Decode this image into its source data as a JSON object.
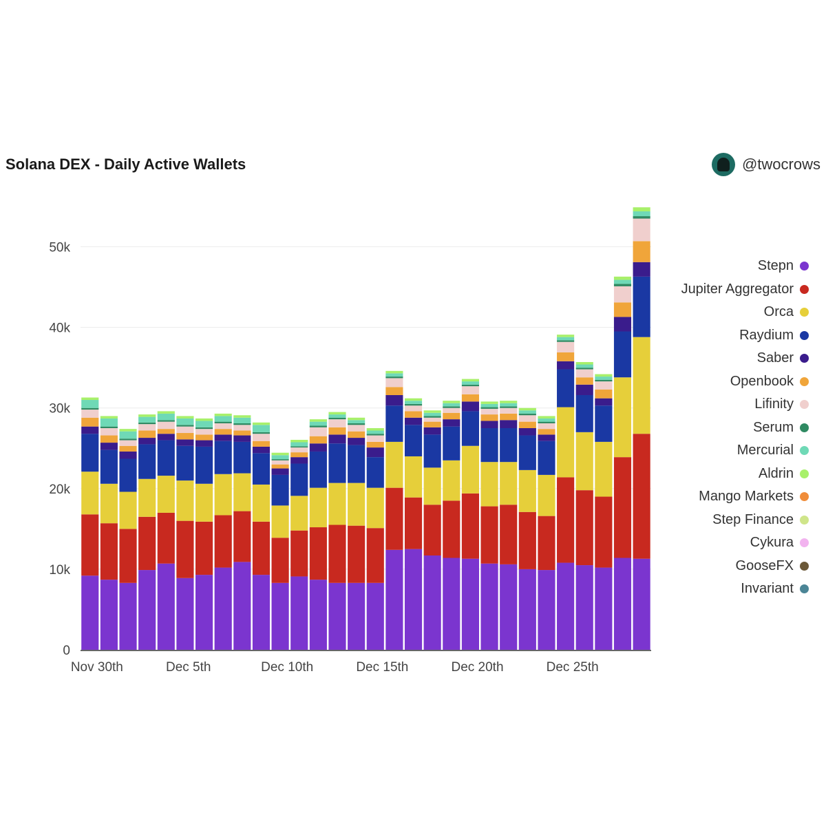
{
  "header": {
    "title": "Solana DEX - Daily Active Wallets",
    "handle": "@twocrows"
  },
  "chart_data": {
    "type": "bar",
    "stacked": true,
    "title": "Solana DEX - Daily Active Wallets",
    "xlabel": "",
    "ylabel": "",
    "ylim": [
      0,
      55000
    ],
    "yticks": [
      {
        "value": 0,
        "label": "0"
      },
      {
        "value": 10000,
        "label": "10k"
      },
      {
        "value": 20000,
        "label": "20k"
      },
      {
        "value": 30000,
        "label": "30k"
      },
      {
        "value": 40000,
        "label": "40k"
      },
      {
        "value": 50000,
        "label": "50k"
      }
    ],
    "xticks": [
      {
        "index": 0,
        "label": "Nov 30th"
      },
      {
        "index": 5,
        "label": "Dec 5th"
      },
      {
        "index": 10,
        "label": "Dec 10th"
      },
      {
        "index": 15,
        "label": "Dec 15th"
      },
      {
        "index": 20,
        "label": "Dec 20th"
      },
      {
        "index": 25,
        "label": "Dec 25th"
      }
    ],
    "grid": true,
    "legend_position": "right",
    "categories": [
      "2022-11-30",
      "2022-12-01",
      "2022-12-02",
      "2022-12-03",
      "2022-12-04",
      "2022-12-05",
      "2022-12-06",
      "2022-12-07",
      "2022-12-08",
      "2022-12-09",
      "2022-12-10",
      "2022-12-11",
      "2022-12-12",
      "2022-12-13",
      "2022-12-14",
      "2022-12-15",
      "2022-12-16",
      "2022-12-17",
      "2022-12-18",
      "2022-12-19",
      "2022-12-20",
      "2022-12-21",
      "2022-12-22",
      "2022-12-23",
      "2022-12-24",
      "2022-12-25",
      "2022-12-26",
      "2022-12-27",
      "2022-12-28",
      "2022-12-29"
    ],
    "series": [
      {
        "name": "Stepn",
        "color": "#7b35cf",
        "values": [
          9200,
          8700,
          8300,
          9900,
          10700,
          8900,
          9300,
          10200,
          10900,
          9300,
          8300,
          9100,
          8700,
          8300,
          8300,
          8300,
          12400,
          12500,
          11700,
          11400,
          11300,
          10700,
          10600,
          10000,
          9900,
          10800,
          10500,
          10200,
          11400,
          11300
        ]
      },
      {
        "name": "Jupiter Aggregator",
        "color": "#c8291f",
        "values": [
          7600,
          7000,
          6700,
          6600,
          6300,
          7100,
          6600,
          6500,
          6300,
          6600,
          5600,
          5700,
          6500,
          7200,
          7100,
          6800,
          7700,
          6400,
          6300,
          7100,
          8100,
          7100,
          7400,
          7100,
          6700,
          10600,
          9300,
          8800,
          12500,
          15500
        ]
      },
      {
        "name": "Orca",
        "color": "#e6cf3a",
        "values": [
          5300,
          4900,
          4600,
          4700,
          4600,
          5000,
          4700,
          5100,
          4700,
          4600,
          4000,
          4300,
          4900,
          5200,
          5300,
          5000,
          5700,
          5100,
          4600,
          5000,
          5900,
          5500,
          5300,
          5200,
          5100,
          8700,
          7200,
          6800,
          9900,
          12000
        ]
      },
      {
        "name": "Raydium",
        "color": "#1a38a3",
        "values": [
          4700,
          4200,
          4100,
          4300,
          4400,
          4300,
          4600,
          4100,
          3900,
          3900,
          3800,
          4000,
          4500,
          4900,
          4700,
          3800,
          4500,
          3900,
          4100,
          4200,
          4300,
          4200,
          4200,
          4300,
          4200,
          4700,
          4600,
          4500,
          5700,
          7500
        ]
      },
      {
        "name": "Saber",
        "color": "#3a1c8c",
        "values": [
          900,
          900,
          900,
          800,
          800,
          800,
          800,
          800,
          800,
          800,
          800,
          800,
          1000,
          1100,
          900,
          1200,
          1300,
          900,
          900,
          900,
          1200,
          900,
          1000,
          900,
          800,
          1000,
          1300,
          900,
          1800,
          1800
        ]
      },
      {
        "name": "Openbook",
        "color": "#f0a53a",
        "values": [
          1100,
          900,
          700,
          900,
          600,
          800,
          700,
          700,
          600,
          700,
          500,
          600,
          900,
          900,
          800,
          700,
          1000,
          800,
          700,
          800,
          900,
          800,
          800,
          800,
          700,
          1100,
          900,
          1100,
          1800,
          2600
        ]
      },
      {
        "name": "Lifinity",
        "color": "#f0cfcd",
        "values": [
          1000,
          900,
          700,
          800,
          900,
          800,
          700,
          700,
          700,
          900,
          500,
          600,
          1100,
          1000,
          800,
          800,
          1100,
          700,
          500,
          600,
          1000,
          700,
          700,
          800,
          700,
          1300,
          1000,
          1000,
          2000,
          2800
        ]
      },
      {
        "name": "Serum",
        "color": "#2f8a62",
        "values": [
          200,
          200,
          200,
          200,
          200,
          200,
          200,
          200,
          200,
          200,
          150,
          150,
          200,
          200,
          200,
          200,
          200,
          200,
          200,
          200,
          200,
          200,
          200,
          200,
          200,
          200,
          200,
          200,
          300,
          300
        ]
      },
      {
        "name": "Mercurial",
        "color": "#6fd9b6",
        "values": [
          1000,
          1000,
          900,
          700,
          800,
          800,
          800,
          700,
          700,
          900,
          500,
          500,
          500,
          400,
          400,
          400,
          400,
          400,
          400,
          400,
          400,
          400,
          400,
          400,
          400,
          400,
          400,
          400,
          500,
          600
        ]
      },
      {
        "name": "Aldrin",
        "color": "#a8f06a",
        "values": [
          300,
          300,
          300,
          300,
          300,
          300,
          300,
          300,
          300,
          300,
          300,
          300,
          300,
          300,
          300,
          300,
          300,
          300,
          300,
          300,
          300,
          300,
          300,
          300,
          300,
          300,
          300,
          300,
          400,
          500
        ]
      },
      {
        "name": "Mango Markets",
        "color": "#f08d3a",
        "values": [
          0,
          0,
          0,
          0,
          0,
          0,
          0,
          0,
          0,
          0,
          0,
          0,
          0,
          0,
          0,
          0,
          0,
          0,
          0,
          0,
          0,
          0,
          0,
          0,
          0,
          0,
          0,
          0,
          0,
          0
        ]
      },
      {
        "name": "Step Finance",
        "color": "#cfe58a",
        "values": [
          0,
          0,
          0,
          0,
          0,
          0,
          0,
          0,
          0,
          0,
          0,
          0,
          0,
          0,
          0,
          0,
          0,
          0,
          0,
          0,
          0,
          0,
          0,
          0,
          0,
          0,
          0,
          0,
          0,
          0
        ]
      },
      {
        "name": "Cykura",
        "color": "#f2b3ef",
        "values": [
          0,
          0,
          0,
          0,
          0,
          0,
          0,
          0,
          0,
          0,
          0,
          0,
          0,
          0,
          0,
          0,
          0,
          0,
          0,
          0,
          0,
          0,
          0,
          0,
          0,
          0,
          0,
          0,
          0,
          0
        ]
      },
      {
        "name": "GooseFX",
        "color": "#6b5838",
        "values": [
          0,
          0,
          0,
          0,
          0,
          0,
          0,
          0,
          0,
          0,
          0,
          0,
          0,
          0,
          0,
          0,
          0,
          0,
          0,
          0,
          0,
          0,
          0,
          0,
          0,
          0,
          0,
          0,
          0,
          0
        ]
      },
      {
        "name": "Invariant",
        "color": "#4b8596",
        "values": [
          0,
          0,
          0,
          0,
          0,
          0,
          0,
          0,
          0,
          0,
          0,
          0,
          0,
          0,
          0,
          0,
          0,
          0,
          0,
          0,
          0,
          0,
          0,
          0,
          0,
          0,
          0,
          0,
          0,
          0
        ]
      }
    ]
  }
}
